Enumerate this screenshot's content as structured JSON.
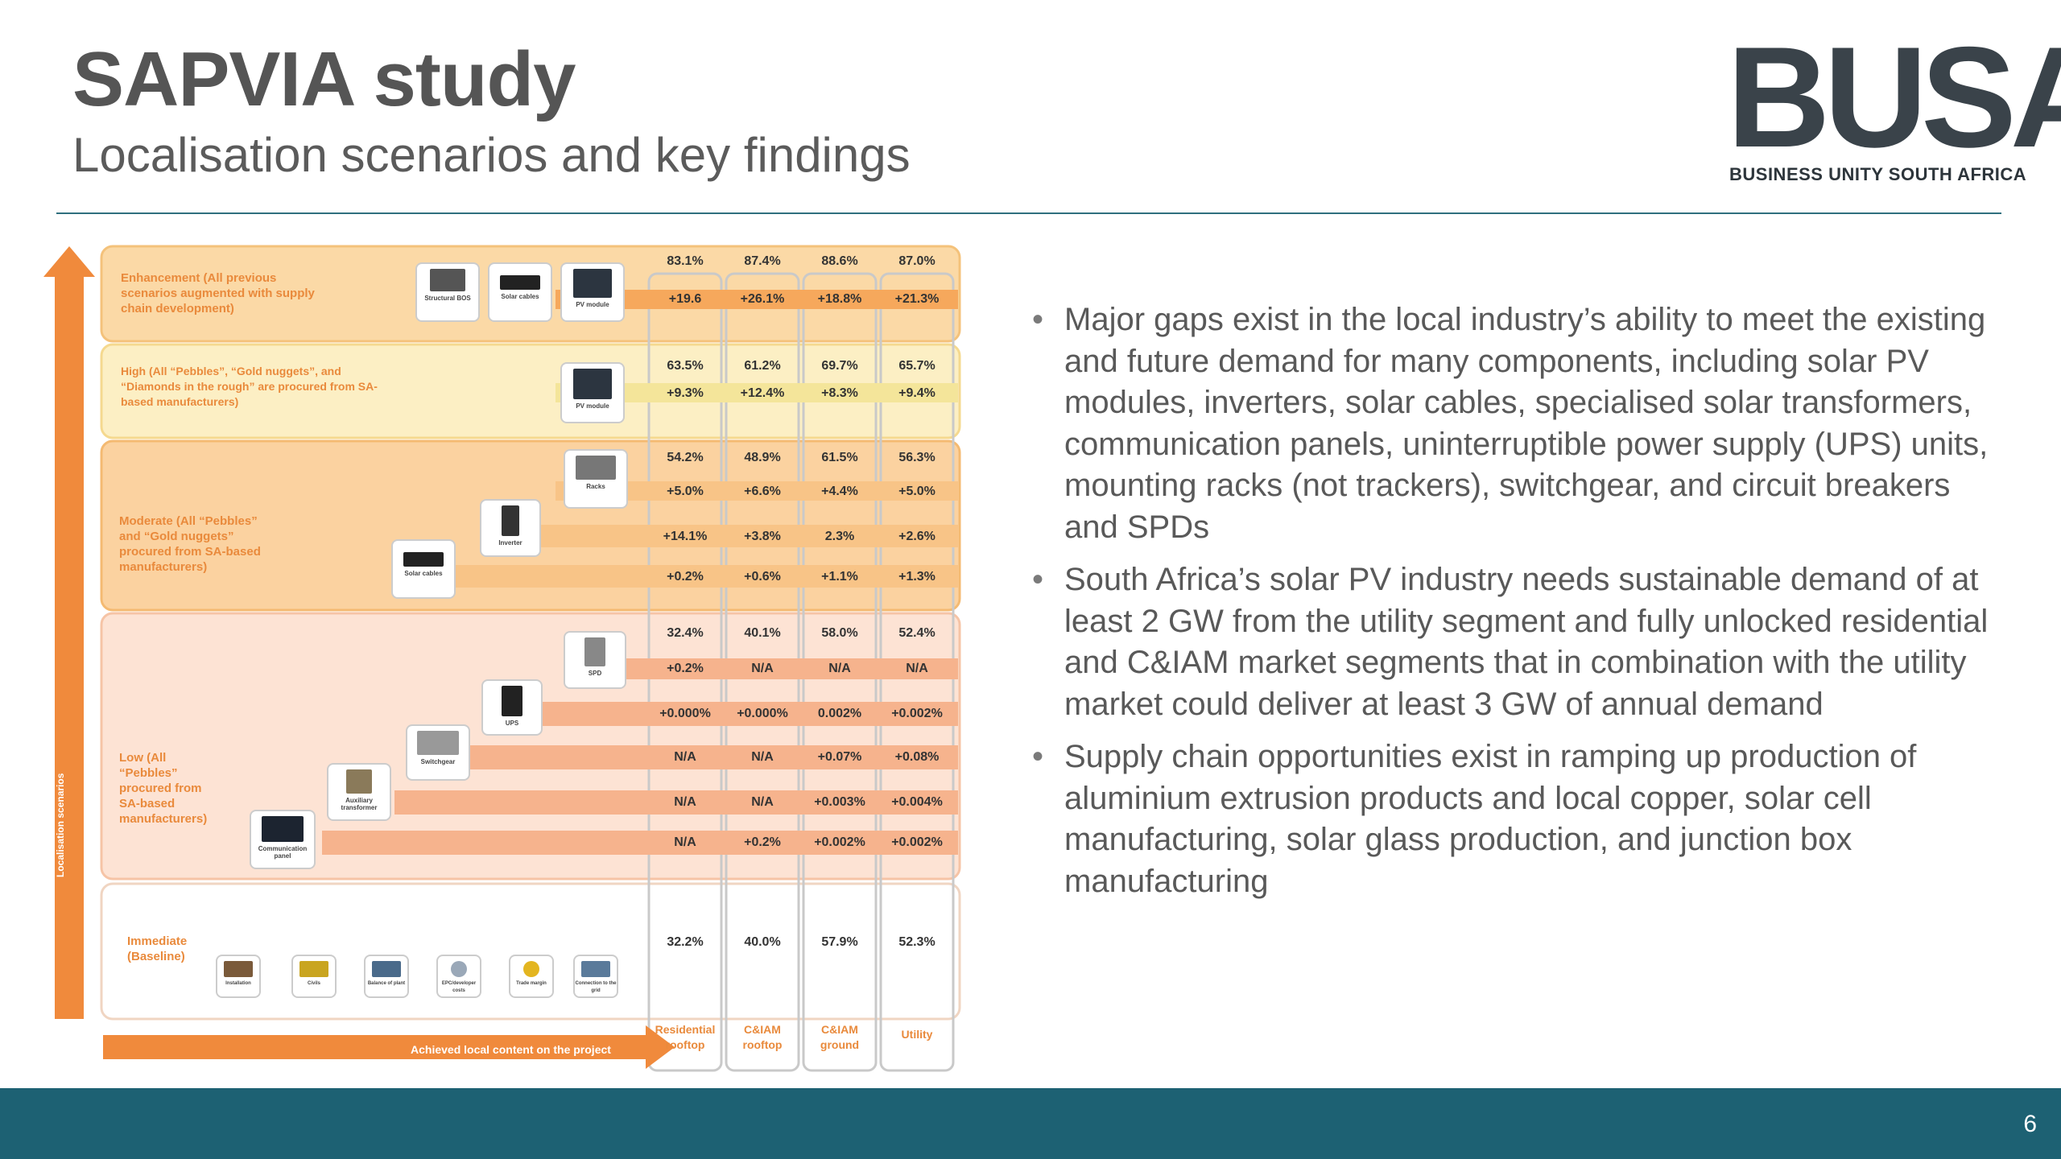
{
  "slide": {
    "title": "SAPVIA study",
    "subtitle": "Localisation scenarios and key findings",
    "page_number": "6"
  },
  "logo": {
    "word": "BUSA",
    "tagline": "BUSINESS UNITY SOUTH AFRICA"
  },
  "colors": {
    "accent_orange": "#f08a3c",
    "footer_teal": "#1d6173",
    "title_grey": "#555555",
    "rule_teal": "#2f6f7e"
  },
  "figure": {
    "vertical_axis_label": "Localisation scenarios",
    "horizontal_axis_label": "Achieved local content on the project",
    "columns": [
      "Residential rooftop",
      "C&IAM rooftop",
      "C&IAM ground",
      "Utility"
    ],
    "bands": [
      {
        "label": "Enhancement (All previous scenarios augmented with supply chain development)",
        "rows": [
          [
            "83.1%",
            "87.4%",
            "88.6%",
            "87.0%"
          ],
          [
            "+19.6",
            "+26.1%",
            "+18.8%",
            "+21.3%"
          ]
        ],
        "icons": [
          "Structural BOS",
          "Solar cables",
          "PV module"
        ]
      },
      {
        "label": "High (All “Pebbles”, “Gold nuggets”, and “Diamonds in the rough” are procured from SA-based manufacturers)",
        "rows": [
          [
            "63.5%",
            "61.2%",
            "69.7%",
            "65.7%"
          ],
          [
            "+9.3%",
            "+12.4%",
            "+8.3%",
            "+9.4%"
          ]
        ],
        "icons": [
          "PV module"
        ]
      },
      {
        "label": "Moderate (All “Pebbles” and “Gold nuggets” procured from SA-based manufacturers)",
        "rows": [
          [
            "54.2%",
            "48.9%",
            "61.5%",
            "56.3%"
          ],
          [
            "+5.0%",
            "+6.6%",
            "+4.4%",
            "+5.0%"
          ],
          [
            "+14.1%",
            "+3.8%",
            "2.3%",
            "+2.6%"
          ],
          [
            "+0.2%",
            "+0.6%",
            "+1.1%",
            "+1.3%"
          ]
        ],
        "icons": [
          "Racks",
          "Inverter",
          "Solar cables"
        ]
      },
      {
        "label": "Low (All “Pebbles” procured from SA-based manufacturers)",
        "rows": [
          [
            "32.4%",
            "40.1%",
            "58.0%",
            "52.4%"
          ],
          [
            "+0.2%",
            "N/A",
            "N/A",
            "N/A"
          ],
          [
            "+0.000%",
            "+0.000%",
            "0.002%",
            "+0.002%"
          ],
          [
            "N/A",
            "N/A",
            "+0.07%",
            "+0.08%"
          ],
          [
            "N/A",
            "N/A",
            "+0.003%",
            "+0.004%"
          ],
          [
            "N/A",
            "+0.2%",
            "+0.002%",
            "+0.002%"
          ]
        ],
        "icons": [
          "SPD",
          "UPS",
          "Switchgear",
          "Auxiliary transformer",
          "Communication panel"
        ]
      },
      {
        "label": "Immediate (Baseline)",
        "rows": [
          [
            "32.2%",
            "40.0%",
            "57.9%",
            "52.3%"
          ]
        ],
        "icons": [
          "Installation",
          "Civils",
          "Balance of plant",
          "EPC/developer costs",
          "Trade margin",
          "Connection to the grid"
        ]
      }
    ]
  },
  "bullets": [
    "Major gaps exist in the local industry’s ability to meet the existing and future demand for many components, including solar PV modules, inverters, solar cables, specialised solar transformers, communication panels, uninterruptible power supply (UPS) units, mounting racks (not trackers), switchgear, and circuit breakers and SPDs",
    "South Africa’s solar PV industry needs sustainable demand of at least 2 GW from the utility segment and fully unlocked residential and C&IAM market segments that in combination with the utility market could deliver at least 3 GW of annual demand",
    "Supply chain opportunities exist in ramping up production of aluminium extrusion products and local copper, solar cell manufacturing, solar glass production, and junction box manufacturing"
  ]
}
